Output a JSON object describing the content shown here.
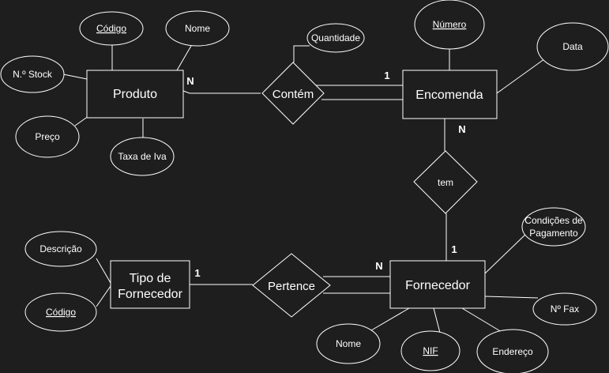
{
  "diagram": {
    "entities": {
      "produto": "Produto",
      "encomenda": "Encomenda",
      "fornecedor": "Fornecedor",
      "tipo_fornecedor_l1": "Tipo de",
      "tipo_fornecedor_l2": "Fornecedor"
    },
    "relationships": {
      "contem": "Contém",
      "tem": "tem",
      "pertence": "Pertence"
    },
    "attributes": {
      "codigo_produto": "Código",
      "nome_produto": "Nome",
      "n_stock": "N.º Stock",
      "preco": "Preço",
      "taxa_iva": "Taxa de Iva",
      "quantidade": "Quantidade",
      "numero": "Número",
      "data": "Data",
      "condicoes_l1": "Condições de",
      "condicoes_l2": "Pagamento",
      "n_fax": "Nº Fax",
      "descricao": "Descrição",
      "codigo_tipo": "Código",
      "nome_fornecedor": "Nome",
      "nif": "NIF",
      "endereco": "Endereço"
    },
    "cardinalities": {
      "produto_contem": "N",
      "encomenda_contem": "1",
      "encomenda_tem": "N",
      "fornecedor_tem": "1",
      "fornecedor_pertence": "N",
      "tipo_pertence": "1"
    }
  }
}
